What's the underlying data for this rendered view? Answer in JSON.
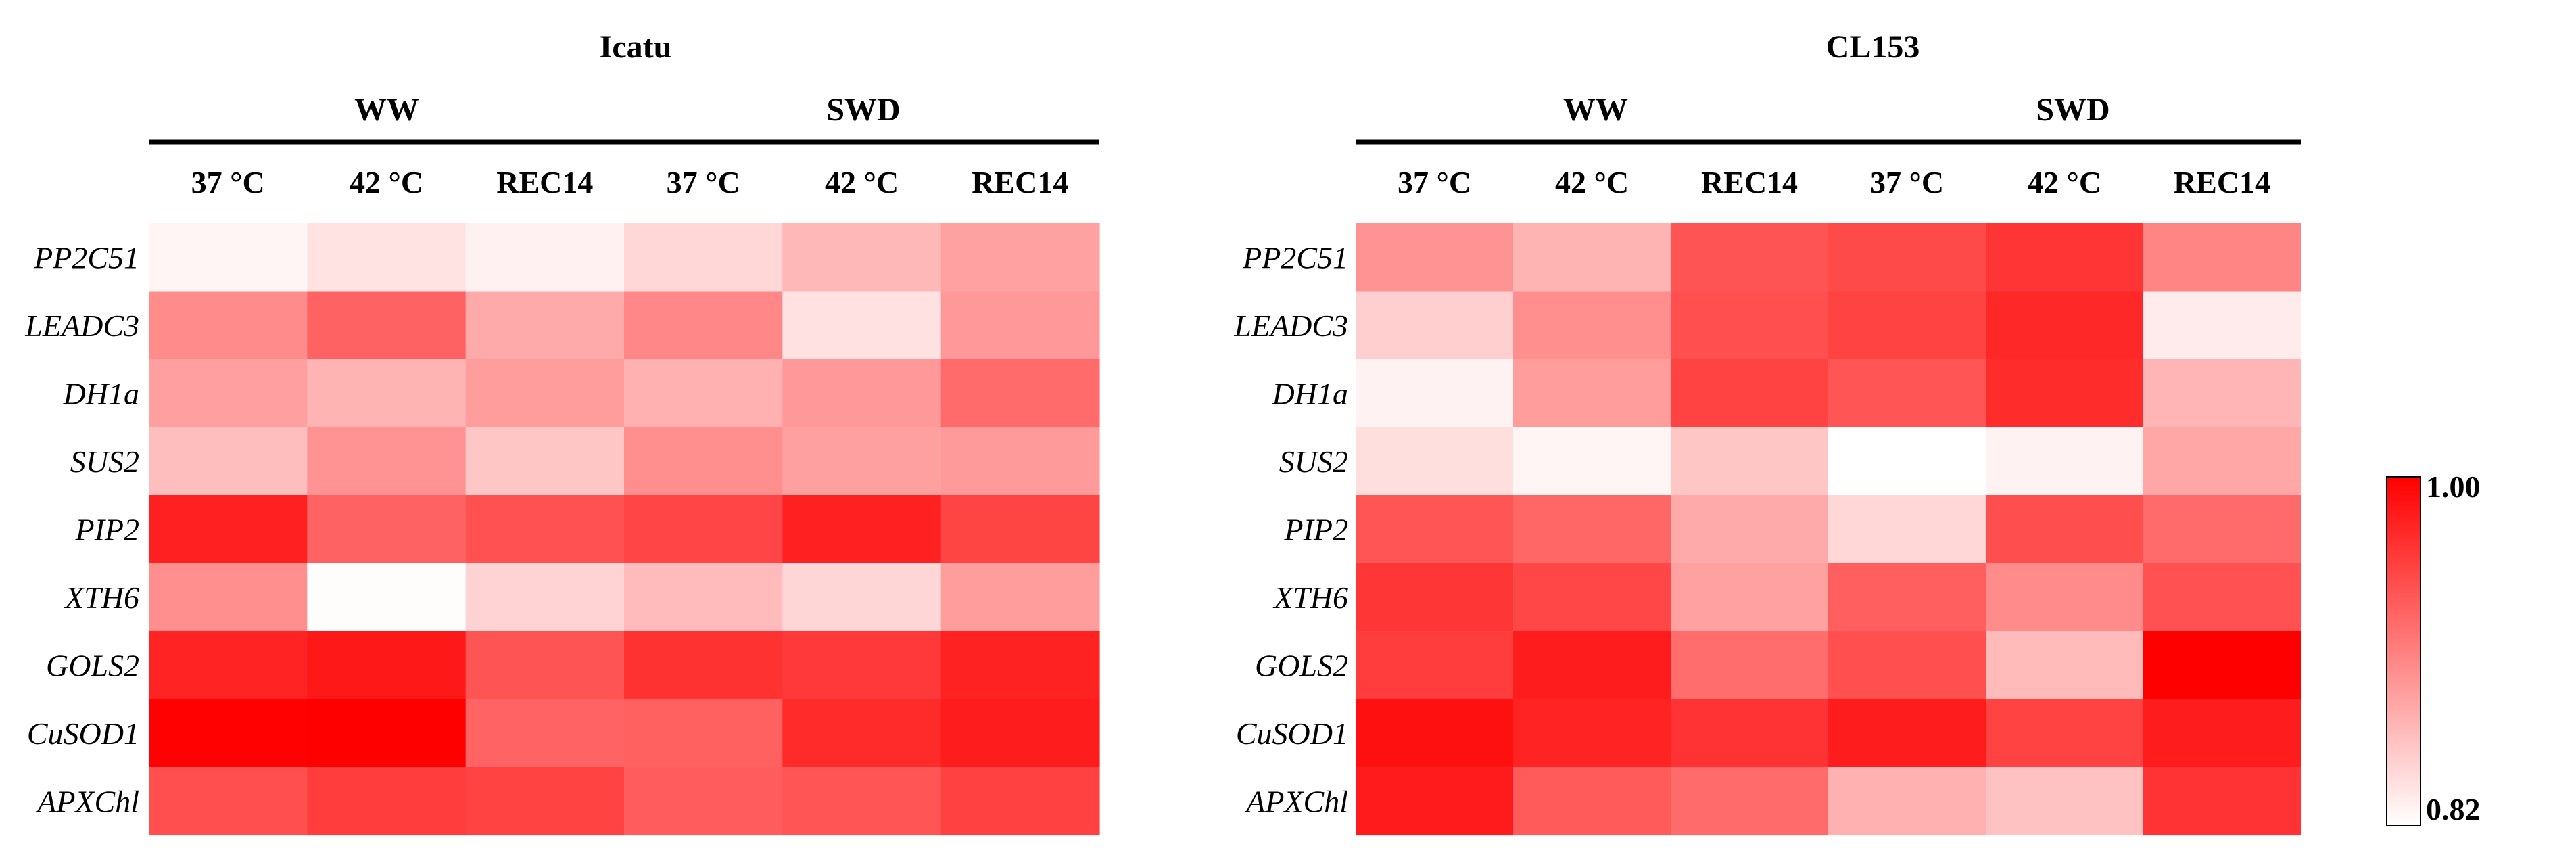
{
  "chart_data": {
    "type": "heatmap",
    "row_labels": [
      "PP2C51",
      "LEADC3",
      "DH1a",
      "SUS2",
      "PIP2",
      "XTH6",
      "GOLS2",
      "CuSOD1",
      "APXChl"
    ],
    "column_groups": [
      "WW",
      "SWD"
    ],
    "column_labels": [
      "37 °C",
      "42 °C",
      "REC14",
      "37 °C",
      "42 °C",
      "REC14"
    ],
    "color_scale": {
      "min": 0.82,
      "max": 1.0,
      "min_label": "0.82",
      "max_label": "1.00",
      "min_color": "#ffffff",
      "max_color": "#ff0000"
    },
    "panels": [
      {
        "title": "Icatu",
        "values": [
          [
            0.827,
            0.84,
            0.83,
            0.848,
            0.87,
            0.886
          ],
          [
            0.902,
            0.931,
            0.88,
            0.905,
            0.841,
            0.892
          ],
          [
            0.888,
            0.873,
            0.889,
            0.876,
            0.893,
            0.925
          ],
          [
            0.866,
            0.896,
            0.86,
            0.899,
            0.887,
            0.891
          ],
          [
            0.977,
            0.931,
            0.943,
            0.951,
            0.977,
            0.952
          ],
          [
            0.899,
            0.822,
            0.851,
            0.868,
            0.849,
            0.89
          ],
          [
            0.975,
            0.983,
            0.941,
            0.965,
            0.96,
            0.976
          ],
          [
            0.999,
            1.0,
            0.93,
            0.932,
            0.97,
            0.98
          ],
          [
            0.944,
            0.957,
            0.953,
            0.934,
            0.94,
            0.954
          ]
        ]
      },
      {
        "title": "CL153",
        "values": [
          [
            0.896,
            0.873,
            0.941,
            0.948,
            0.963,
            0.906
          ],
          [
            0.854,
            0.9,
            0.944,
            0.953,
            0.972,
            0.834
          ],
          [
            0.829,
            0.889,
            0.953,
            0.94,
            0.969,
            0.872
          ],
          [
            0.843,
            0.827,
            0.86,
            0.82,
            0.829,
            0.882
          ],
          [
            0.94,
            0.928,
            0.88,
            0.848,
            0.945,
            0.925
          ],
          [
            0.962,
            0.95,
            0.886,
            0.933,
            0.902,
            0.943
          ],
          [
            0.957,
            0.98,
            0.923,
            0.944,
            0.869,
            1.0
          ],
          [
            0.989,
            0.975,
            0.964,
            0.98,
            0.953,
            0.98
          ],
          [
            0.981,
            0.936,
            0.925,
            0.875,
            0.863,
            0.964
          ]
        ]
      }
    ]
  }
}
